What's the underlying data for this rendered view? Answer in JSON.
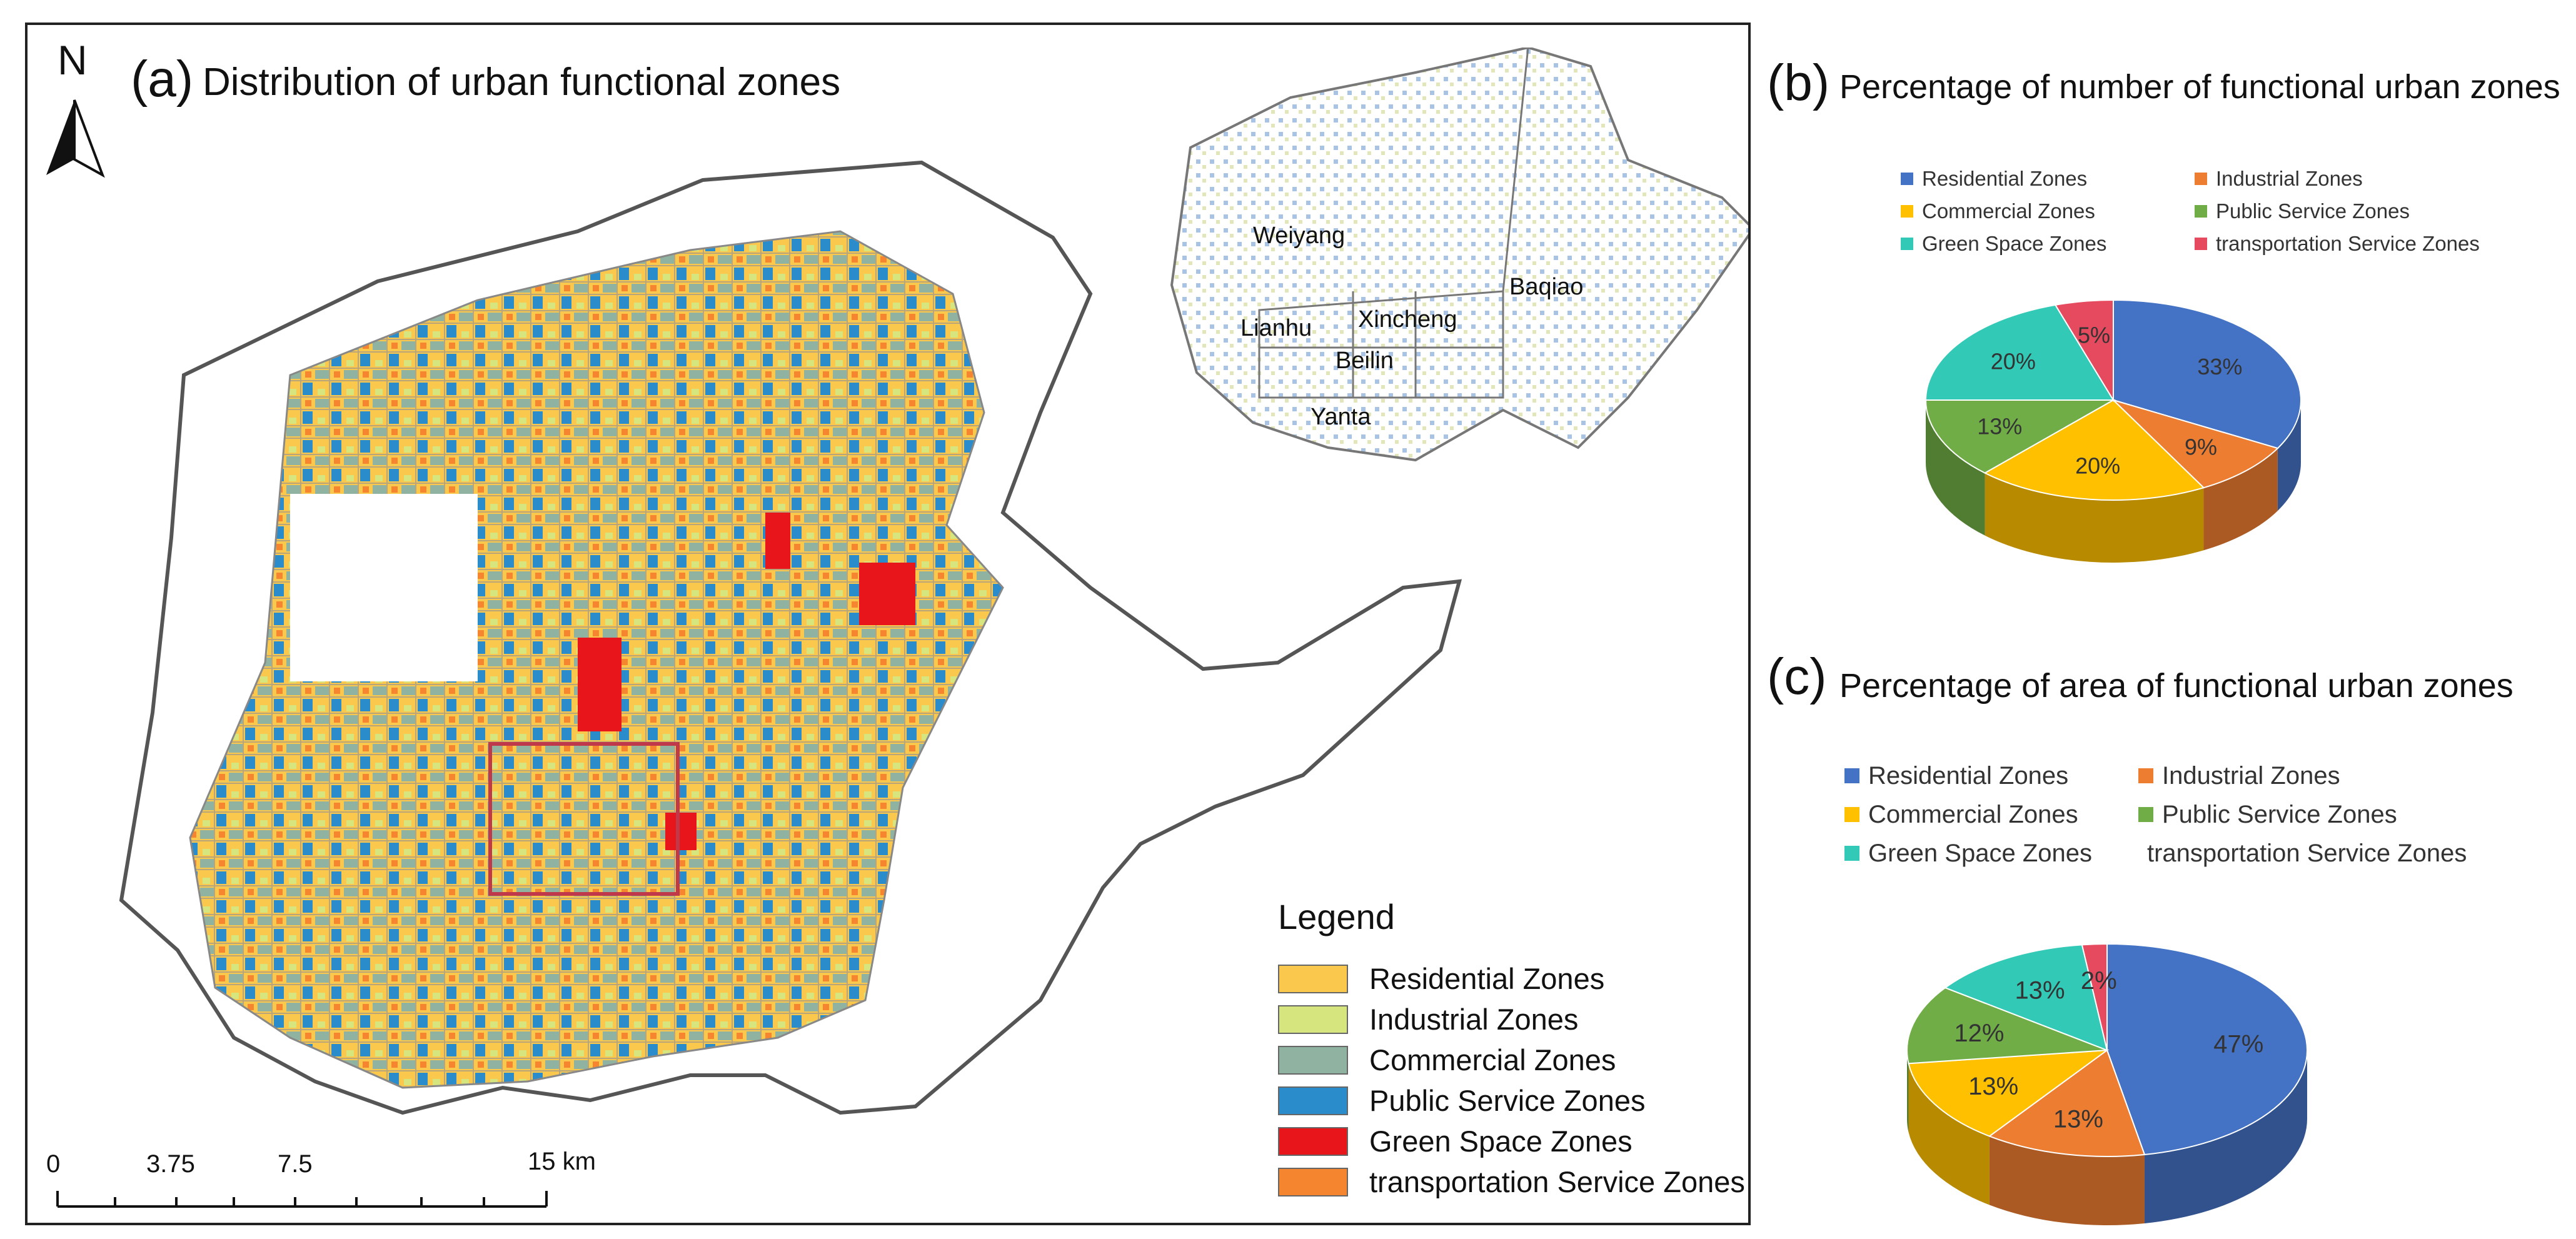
{
  "map": {
    "panel_label": "(a)",
    "title": "Distribution of urban functional zones",
    "north_letter": "N",
    "legend_title": "Legend",
    "legend": [
      {
        "label": "Residential Zones",
        "color": "#f9c84d"
      },
      {
        "label": "Industrial Zones",
        "color": "#d7e57e"
      },
      {
        "label": "Commercial Zones",
        "color": "#8fb3a0"
      },
      {
        "label": "Public Service Zones",
        "color": "#2b8ccc"
      },
      {
        "label": "Green Space Zones",
        "color": "#e8161b"
      },
      {
        "label": "transportation Service Zones",
        "color": "#f5852e"
      }
    ],
    "scale_labels": [
      "0",
      "3.75",
      "7.5",
      "15 km"
    ],
    "inset_districts": [
      "Weiyang",
      "Baqiao",
      "Lianhu",
      "Xincheng",
      "Beilin",
      "Yanta"
    ]
  },
  "pie_number": {
    "panel_label": "(b)",
    "title": "Percentage of number of functional urban zones",
    "legend": [
      {
        "label": "Residential Zones",
        "color": "#4472c4"
      },
      {
        "label": "Industrial Zones",
        "color": "#ed7d31"
      },
      {
        "label": "Commercial Zones",
        "color": "#ffc000"
      },
      {
        "label": "Public Service Zones",
        "color": "#70ad47"
      },
      {
        "label": "Green Space Zones",
        "color": "#33c9b7"
      },
      {
        "label": "transportation Service Zones",
        "color": "#e64a5f"
      }
    ]
  },
  "pie_area": {
    "panel_label": "(c)",
    "title": "Percentage of area of functional urban zones",
    "legend": [
      {
        "label": "Residential Zones",
        "color": "#4472c4"
      },
      {
        "label": "Industrial Zones",
        "color": "#ed7d31"
      },
      {
        "label": "Commercial Zones",
        "color": "#ffc000"
      },
      {
        "label": "Public Service Zones",
        "color": "#70ad47"
      },
      {
        "label": "Green Space Zones",
        "color": "#33c9b7"
      },
      {
        "label": "transportation Service Zones",
        "color": "#e64a5f"
      }
    ]
  },
  "chart_data": [
    {
      "type": "pie",
      "title": "Percentage of number of functional urban zones",
      "categories": [
        "Residential Zones",
        "Industrial Zones",
        "Commercial Zones",
        "Public Service Zones",
        "Green Space Zones",
        "transportation Service Zones"
      ],
      "values": [
        33,
        9,
        20,
        13,
        20,
        5
      ],
      "labels": [
        "33%",
        "9%",
        "20%",
        "13%",
        "20%",
        "5%"
      ],
      "colors": [
        "#4472c4",
        "#ed7d31",
        "#ffc000",
        "#70ad47",
        "#33c9b7",
        "#e64a5f"
      ],
      "legend_position": "top"
    },
    {
      "type": "pie",
      "title": "Percentage of area of functional urban zones",
      "categories": [
        "Residential Zones",
        "Industrial Zones",
        "Commercial Zones",
        "Public Service Zones",
        "Green Space Zones",
        "transportation Service Zones"
      ],
      "values": [
        47,
        13,
        13,
        12,
        13,
        2
      ],
      "labels": [
        "47%",
        "13%",
        "13%",
        "12%",
        "13%",
        "2%"
      ],
      "colors": [
        "#4472c4",
        "#ed7d31",
        "#ffc000",
        "#70ad47",
        "#33c9b7",
        "#e64a5f"
      ],
      "legend_position": "top"
    }
  ]
}
